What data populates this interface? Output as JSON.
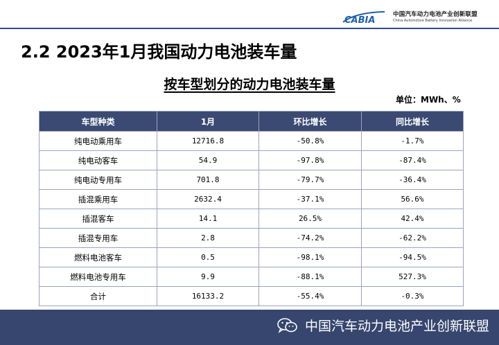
{
  "header": {
    "logo_mark": "CABIA",
    "logo_cn": "中国汽车动力电池产业创新联盟",
    "logo_en": "China Automotive Battery Innovation Alliance"
  },
  "slide_title": "2.2  2023年1月我国动力电池装车量",
  "table_title": "按车型划分的动力电池装车量",
  "unit": "单位：MWh、%",
  "table": {
    "headers": [
      "车型种类",
      "1月",
      "环比增长",
      "同比增长"
    ],
    "rows": [
      [
        "纯电动乘用车",
        "12716.8",
        "-50.8%",
        "-1.7%"
      ],
      [
        "纯电动客车",
        "54.9",
        "-97.8%",
        "-87.4%"
      ],
      [
        "纯电动专用车",
        "701.8",
        "-79.7%",
        "-36.4%"
      ],
      [
        "插混乘用车",
        "2632.4",
        "-37.1%",
        "56.6%"
      ],
      [
        "插混客车",
        "14.1",
        "26.5%",
        "42.4%"
      ],
      [
        "插混专用车",
        "2.8",
        "-74.2%",
        "-62.2%"
      ],
      [
        "燃料电池客车",
        "0.5",
        "-98.1%",
        "-94.5%"
      ],
      [
        "燃料电池专用车",
        "9.9",
        "-88.1%",
        "527.3%"
      ],
      [
        "合计",
        "16133.2",
        "-55.4%",
        "-0.3%"
      ]
    ]
  },
  "footer": {
    "watermark_text": "中国汽车动力电池产业创新联盟",
    "icon": "wechat-icon"
  },
  "colors": {
    "header_fill": "#3b4a73",
    "footer_fill": "#36466e",
    "rule": "#2f4a8a",
    "logo_blue": "#1f5fb0"
  }
}
